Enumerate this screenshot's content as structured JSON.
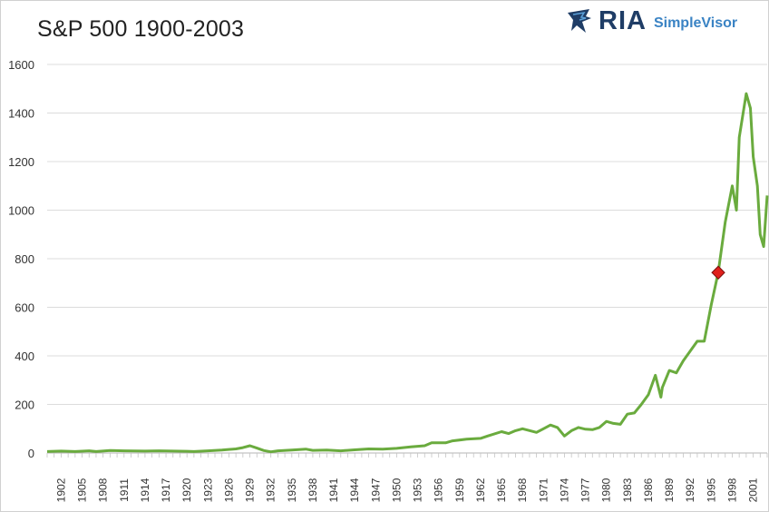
{
  "title": "S&P 500 1900-2003",
  "logo": {
    "brand": "RIA",
    "product": "SimpleVisor",
    "icon": "eagle-head-icon"
  },
  "chart_data": {
    "type": "line",
    "title": "S&P 500 1900-2003",
    "xlabel": "",
    "ylabel": "",
    "ylim": [
      0,
      1600
    ],
    "xlim": [
      1900,
      2003
    ],
    "y_ticks": [
      0,
      200,
      400,
      600,
      800,
      1000,
      1200,
      1400,
      1600
    ],
    "x_tick_labels": [
      "1902",
      "1905",
      "1908",
      "1911",
      "1914",
      "1917",
      "1920",
      "1923",
      "1926",
      "1929",
      "1932",
      "1935",
      "1938",
      "1941",
      "1944",
      "1947",
      "1950",
      "1953",
      "1956",
      "1959",
      "1962",
      "1965",
      "1968",
      "1971",
      "1974",
      "1977",
      "1980",
      "1983",
      "1986",
      "1989",
      "1992",
      "1995",
      "1998",
      "2001"
    ],
    "grid": true,
    "line_color": "#6aab3e",
    "marker": {
      "x": 1996.0,
      "y": 743,
      "shape": "diamond",
      "color": "#e0201c"
    },
    "series": [
      {
        "points": [
          [
            1900,
            6
          ],
          [
            1902,
            8
          ],
          [
            1904,
            6
          ],
          [
            1906,
            9
          ],
          [
            1907,
            6
          ],
          [
            1909,
            10
          ],
          [
            1911,
            9
          ],
          [
            1914,
            8
          ],
          [
            1916,
            9
          ],
          [
            1918,
            8
          ],
          [
            1920,
            7
          ],
          [
            1921,
            6
          ],
          [
            1923,
            9
          ],
          [
            1925,
            12
          ],
          [
            1927,
            17
          ],
          [
            1928,
            22
          ],
          [
            1929,
            30
          ],
          [
            1930,
            20
          ],
          [
            1931,
            10
          ],
          [
            1932,
            5
          ],
          [
            1933,
            9
          ],
          [
            1935,
            12
          ],
          [
            1937,
            16
          ],
          [
            1938,
            11
          ],
          [
            1940,
            12
          ],
          [
            1942,
            9
          ],
          [
            1944,
            13
          ],
          [
            1946,
            17
          ],
          [
            1948,
            16
          ],
          [
            1950,
            19
          ],
          [
            1952,
            25
          ],
          [
            1954,
            30
          ],
          [
            1955,
            42
          ],
          [
            1957,
            42
          ],
          [
            1958,
            50
          ],
          [
            1960,
            57
          ],
          [
            1962,
            60
          ],
          [
            1963,
            70
          ],
          [
            1965,
            88
          ],
          [
            1966,
            80
          ],
          [
            1967,
            92
          ],
          [
            1968,
            100
          ],
          [
            1970,
            85
          ],
          [
            1971,
            100
          ],
          [
            1972,
            115
          ],
          [
            1973,
            105
          ],
          [
            1974,
            70
          ],
          [
            1975,
            92
          ],
          [
            1976,
            105
          ],
          [
            1977,
            98
          ],
          [
            1978,
            96
          ],
          [
            1979,
            105
          ],
          [
            1980,
            130
          ],
          [
            1981,
            122
          ],
          [
            1982,
            118
          ],
          [
            1983,
            160
          ],
          [
            1984,
            165
          ],
          [
            1985,
            200
          ],
          [
            1986,
            240
          ],
          [
            1987,
            320
          ],
          [
            1987.8,
            230
          ],
          [
            1988,
            270
          ],
          [
            1989,
            340
          ],
          [
            1990,
            330
          ],
          [
            1991,
            380
          ],
          [
            1992,
            420
          ],
          [
            1993,
            460
          ],
          [
            1994,
            460
          ],
          [
            1995,
            610
          ],
          [
            1996,
            743
          ],
          [
            1997,
            950
          ],
          [
            1998,
            1100
          ],
          [
            1998.6,
            1000
          ],
          [
            1999,
            1300
          ],
          [
            2000,
            1480
          ],
          [
            2000.6,
            1420
          ],
          [
            2001,
            1220
          ],
          [
            2001.6,
            1100
          ],
          [
            2002,
            900
          ],
          [
            2002.5,
            850
          ],
          [
            2003,
            1060
          ]
        ]
      }
    ]
  }
}
